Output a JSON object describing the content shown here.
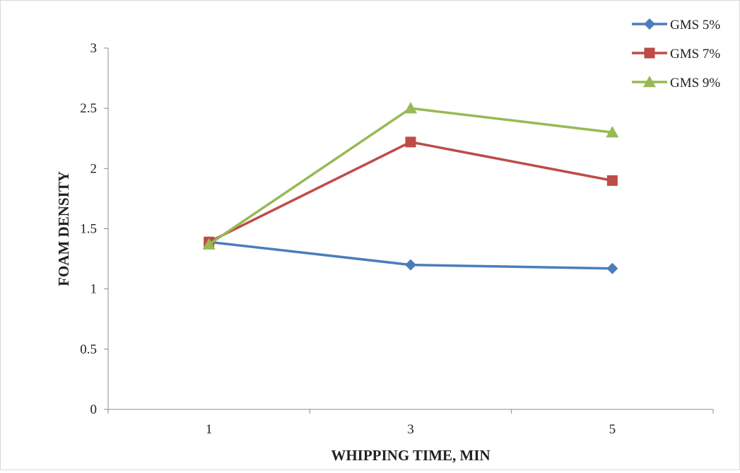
{
  "chart_data": {
    "type": "line",
    "title": "",
    "xlabel": "WHIPPING TIME, MIN",
    "ylabel": "FOAM DENSITY",
    "categories": [
      "1",
      "3",
      "5"
    ],
    "ylim": [
      0,
      3
    ],
    "yticks": [
      0,
      0.5,
      1,
      1.5,
      2,
      2.5,
      3
    ],
    "ytick_labels": [
      "0",
      "0.5",
      "1",
      "1.5",
      "2",
      "2.5",
      "3"
    ],
    "grid": false,
    "legend_position": "top-right",
    "series": [
      {
        "name": "GMS 5%",
        "values": [
          1.39,
          1.2,
          1.17
        ],
        "color": "#4a7ebb",
        "marker": "diamond"
      },
      {
        "name": "GMS 7%",
        "values": [
          1.39,
          2.22,
          1.9
        ],
        "color": "#be4b48",
        "marker": "square"
      },
      {
        "name": "GMS 9%",
        "values": [
          1.37,
          2.5,
          2.3
        ],
        "color": "#98b954",
        "marker": "triangle"
      }
    ]
  }
}
